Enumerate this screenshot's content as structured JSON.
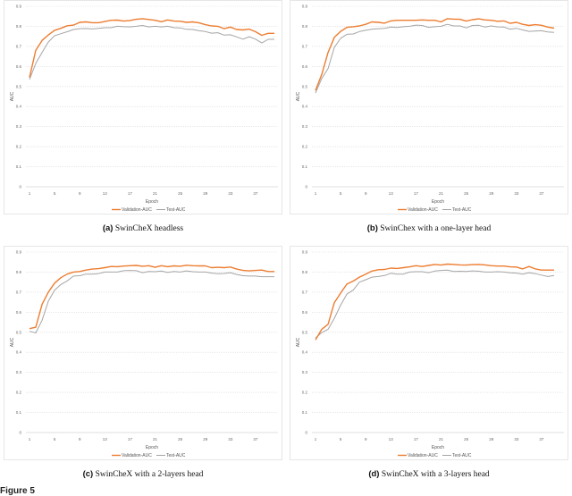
{
  "colors": {
    "validation": "#ED7D31",
    "test": "#A5A5A5",
    "grid": "#D9D9D9"
  },
  "figure_label": "Figure 5",
  "chart_data": [
    {
      "id": "a",
      "type": "line",
      "caption_tag": "(a)",
      "caption_text": "SwinCheX headless",
      "title": "",
      "xlabel": "Epoch",
      "ylabel": "AUC",
      "ylim": [
        0,
        0.9
      ],
      "yticks": [
        "0",
        "0.1",
        "0.2",
        "0.3",
        "0.4",
        "0.5",
        "0.6",
        "0.7",
        "0.8",
        "0.9"
      ],
      "xticks": [
        "1",
        "5",
        "9",
        "13",
        "17",
        "21",
        "25",
        "29",
        "33",
        "37"
      ],
      "legend": [
        "Validation-AUC",
        "Test-AUC"
      ],
      "legend_position": "bottom",
      "grid": true,
      "x": [
        1,
        2,
        3,
        4,
        5,
        6,
        7,
        8,
        9,
        10,
        11,
        12,
        13,
        14,
        15,
        16,
        17,
        18,
        19,
        20,
        21,
        22,
        23,
        24,
        25,
        26,
        27,
        28,
        29,
        30,
        31,
        32,
        33,
        34,
        35,
        36,
        37,
        38,
        39,
        40
      ],
      "series": [
        {
          "name": "Validation-AUC",
          "values": [
            0.545,
            0.68,
            0.73,
            0.757,
            0.78,
            0.79,
            0.803,
            0.806,
            0.82,
            0.822,
            0.818,
            0.818,
            0.824,
            0.83,
            0.831,
            0.826,
            0.829,
            0.835,
            0.838,
            0.834,
            0.83,
            0.823,
            0.832,
            0.826,
            0.825,
            0.82,
            0.822,
            0.817,
            0.808,
            0.802,
            0.8,
            0.788,
            0.796,
            0.784,
            0.782,
            0.786,
            0.773,
            0.755,
            0.765,
            0.765
          ]
        },
        {
          "name": "Test-AUC",
          "values": [
            0.535,
            0.615,
            0.67,
            0.722,
            0.753,
            0.763,
            0.773,
            0.784,
            0.788,
            0.789,
            0.787,
            0.79,
            0.793,
            0.793,
            0.8,
            0.798,
            0.797,
            0.8,
            0.804,
            0.797,
            0.8,
            0.797,
            0.8,
            0.793,
            0.792,
            0.785,
            0.784,
            0.778,
            0.774,
            0.766,
            0.768,
            0.756,
            0.758,
            0.747,
            0.736,
            0.748,
            0.736,
            0.717,
            0.735,
            0.735
          ]
        }
      ]
    },
    {
      "id": "b",
      "type": "line",
      "caption_tag": "(b)",
      "caption_text": "SwinChex with a one-layer head",
      "title": "",
      "xlabel": "Epoch",
      "ylabel": "AUC",
      "ylim": [
        0,
        0.9
      ],
      "yticks": [
        "0",
        "0.1",
        "0.2",
        "0.3",
        "0.4",
        "0.5",
        "0.6",
        "0.7",
        "0.8",
        "0.9"
      ],
      "xticks": [
        "1",
        "5",
        "9",
        "13",
        "17",
        "21",
        "25",
        "29",
        "33",
        "37"
      ],
      "legend": [
        "Validation-AUC",
        "Test-AUC"
      ],
      "legend_position": "bottom",
      "grid": true,
      "x": [
        1,
        2,
        3,
        4,
        5,
        6,
        7,
        8,
        9,
        10,
        11,
        12,
        13,
        14,
        15,
        16,
        17,
        18,
        19,
        20,
        21,
        22,
        23,
        24,
        25,
        26,
        27,
        28,
        29,
        30,
        31,
        32,
        33,
        34,
        35,
        36,
        37,
        38,
        39
      ],
      "series": [
        {
          "name": "Validation-AUC",
          "values": [
            0.48,
            0.56,
            0.67,
            0.745,
            0.775,
            0.795,
            0.798,
            0.802,
            0.81,
            0.822,
            0.82,
            0.816,
            0.827,
            0.83,
            0.83,
            0.83,
            0.83,
            0.832,
            0.83,
            0.83,
            0.822,
            0.838,
            0.836,
            0.835,
            0.826,
            0.833,
            0.837,
            0.832,
            0.83,
            0.825,
            0.827,
            0.815,
            0.82,
            0.81,
            0.804,
            0.808,
            0.805,
            0.796,
            0.791
          ]
        },
        {
          "name": "Test-AUC",
          "values": [
            0.468,
            0.54,
            0.59,
            0.695,
            0.74,
            0.76,
            0.762,
            0.774,
            0.78,
            0.786,
            0.788,
            0.79,
            0.796,
            0.794,
            0.798,
            0.8,
            0.806,
            0.804,
            0.795,
            0.798,
            0.8,
            0.81,
            0.802,
            0.802,
            0.792,
            0.804,
            0.805,
            0.796,
            0.802,
            0.797,
            0.796,
            0.786,
            0.79,
            0.782,
            0.775,
            0.776,
            0.778,
            0.772,
            0.77
          ]
        }
      ]
    },
    {
      "id": "c",
      "type": "line",
      "caption_tag": "(c)",
      "caption_text": "SwinCheX with a 2-layers head",
      "title": "",
      "xlabel": "Epoch",
      "ylabel": "AUC",
      "ylim": [
        0,
        0.9
      ],
      "yticks": [
        "0",
        "0.1",
        "0.2",
        "0.3",
        "0.4",
        "0.5",
        "0.6",
        "0.7",
        "0.8",
        "0.9"
      ],
      "xticks": [
        "1",
        "5",
        "9",
        "13",
        "17",
        "21",
        "25",
        "29",
        "33",
        "37"
      ],
      "legend": [
        "Validation-AUC",
        "Test-AUC"
      ],
      "legend_position": "bottom",
      "grid": true,
      "x": [
        1,
        2,
        3,
        4,
        5,
        6,
        7,
        8,
        9,
        10,
        11,
        12,
        13,
        14,
        15,
        16,
        17,
        18,
        19,
        20,
        21,
        22,
        23,
        24,
        25,
        26,
        27,
        28,
        29,
        30,
        31,
        32,
        33,
        34,
        35,
        36,
        37,
        38,
        39,
        40
      ],
      "series": [
        {
          "name": "Validation-AUC",
          "values": [
            0.518,
            0.525,
            0.64,
            0.7,
            0.745,
            0.772,
            0.79,
            0.8,
            0.803,
            0.81,
            0.815,
            0.817,
            0.822,
            0.828,
            0.827,
            0.83,
            0.832,
            0.833,
            0.829,
            0.832,
            0.824,
            0.832,
            0.827,
            0.831,
            0.829,
            0.834,
            0.832,
            0.831,
            0.831,
            0.822,
            0.824,
            0.822,
            0.825,
            0.815,
            0.808,
            0.806,
            0.808,
            0.81,
            0.803,
            0.803
          ]
        },
        {
          "name": "Test-AUC",
          "values": [
            0.505,
            0.497,
            0.56,
            0.655,
            0.71,
            0.738,
            0.756,
            0.78,
            0.782,
            0.79,
            0.79,
            0.792,
            0.8,
            0.8,
            0.8,
            0.807,
            0.808,
            0.807,
            0.797,
            0.803,
            0.802,
            0.805,
            0.798,
            0.803,
            0.8,
            0.806,
            0.802,
            0.8,
            0.8,
            0.795,
            0.792,
            0.793,
            0.797,
            0.788,
            0.782,
            0.78,
            0.78,
            0.777,
            0.777,
            0.777
          ]
        }
      ]
    },
    {
      "id": "d",
      "type": "line",
      "caption_tag": "(d)",
      "caption_text": "SwinCheX with a 3-layers head",
      "title": "",
      "xlabel": "Epoch",
      "ylabel": "AUC",
      "ylim": [
        0,
        0.9
      ],
      "yticks": [
        "0",
        "0.1",
        "0.2",
        "0.3",
        "0.4",
        "0.5",
        "0.6",
        "0.7",
        "0.8",
        "0.9"
      ],
      "xticks": [
        "1",
        "5",
        "9",
        "13",
        "17",
        "21",
        "25",
        "29",
        "33",
        "37"
      ],
      "legend": [
        "Validation-AUC",
        "Test-AUC"
      ],
      "legend_position": "bottom",
      "grid": true,
      "x": [
        1,
        2,
        3,
        4,
        5,
        6,
        7,
        8,
        9,
        10,
        11,
        12,
        13,
        14,
        15,
        16,
        17,
        18,
        19,
        20,
        21,
        22,
        23,
        24,
        25,
        26,
        27,
        28,
        29,
        30,
        31,
        32,
        33,
        34,
        35,
        36,
        37,
        38,
        39
      ],
      "series": [
        {
          "name": "Validation-AUC",
          "values": [
            0.462,
            0.515,
            0.54,
            0.648,
            0.695,
            0.74,
            0.755,
            0.775,
            0.79,
            0.805,
            0.812,
            0.813,
            0.82,
            0.818,
            0.822,
            0.826,
            0.832,
            0.828,
            0.833,
            0.838,
            0.835,
            0.84,
            0.838,
            0.836,
            0.835,
            0.837,
            0.838,
            0.836,
            0.832,
            0.83,
            0.83,
            0.826,
            0.825,
            0.816,
            0.828,
            0.816,
            0.81,
            0.81,
            0.81
          ]
        },
        {
          "name": "Test-AUC",
          "values": [
            0.472,
            0.498,
            0.515,
            0.57,
            0.635,
            0.69,
            0.71,
            0.75,
            0.762,
            0.775,
            0.778,
            0.783,
            0.794,
            0.79,
            0.79,
            0.8,
            0.802,
            0.802,
            0.797,
            0.805,
            0.808,
            0.81,
            0.803,
            0.804,
            0.803,
            0.806,
            0.804,
            0.8,
            0.8,
            0.802,
            0.8,
            0.796,
            0.795,
            0.79,
            0.797,
            0.792,
            0.785,
            0.778,
            0.783
          ]
        }
      ]
    }
  ]
}
